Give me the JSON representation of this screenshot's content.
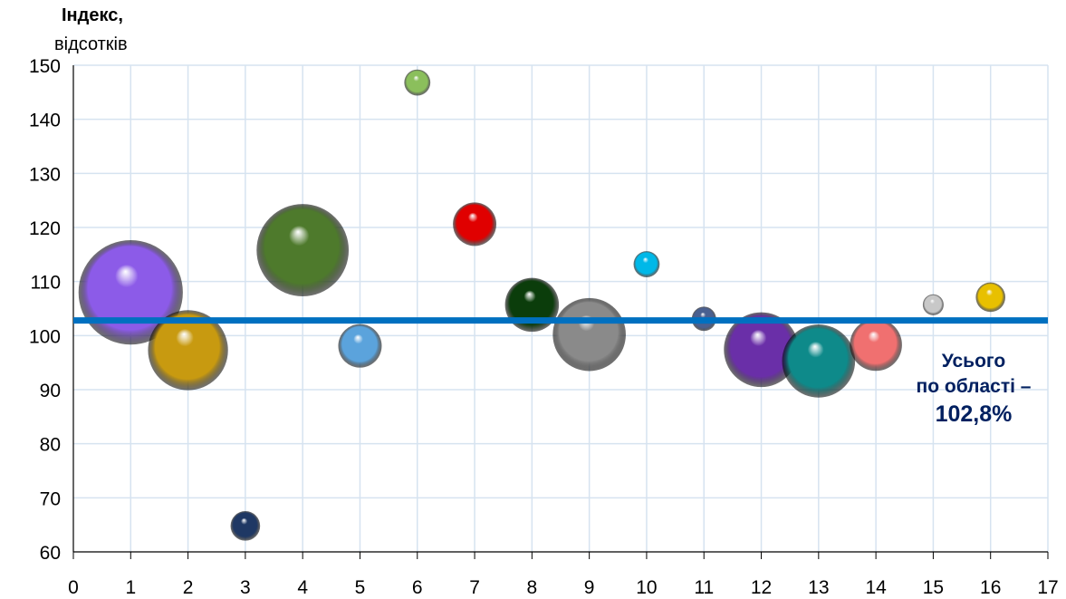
{
  "chart_data": {
    "type": "bubble",
    "ylabel_line1": "Індекс,",
    "ylabel_line2": "відсотків",
    "xlim": [
      0,
      17
    ],
    "ylim": [
      60,
      150
    ],
    "x_ticks": [
      0,
      1,
      2,
      3,
      4,
      5,
      6,
      7,
      8,
      9,
      10,
      11,
      12,
      13,
      14,
      15,
      16,
      17
    ],
    "y_ticks": [
      60,
      70,
      80,
      90,
      100,
      110,
      120,
      130,
      140,
      150
    ],
    "grid": true,
    "reference_line": {
      "y": 102.8,
      "color": "#0070c0"
    },
    "annotation": {
      "line1": "Усього",
      "line2": "по області –",
      "line3": "102,8%"
    },
    "points": [
      {
        "x": 1,
        "y": 108,
        "size": 6.0,
        "color": "#8c5be8"
      },
      {
        "x": 2,
        "y": 97.3,
        "size": 4.6,
        "color": "#c89a10"
      },
      {
        "x": 3,
        "y": 64.8,
        "size": 1.7,
        "color": "#1f3864"
      },
      {
        "x": 4,
        "y": 115.8,
        "size": 5.3,
        "color": "#4e7a2c"
      },
      {
        "x": 5,
        "y": 98.1,
        "size": 2.5,
        "color": "#5ba3dc"
      },
      {
        "x": 6,
        "y": 146.8,
        "size": 1.5,
        "color": "#8bbf5c"
      },
      {
        "x": 7,
        "y": 120.6,
        "size": 2.5,
        "color": "#e00000"
      },
      {
        "x": 8,
        "y": 105.7,
        "size": 3.1,
        "color": "#0b3d0b"
      },
      {
        "x": 9,
        "y": 100.2,
        "size": 4.2,
        "color": "#8a8a8a"
      },
      {
        "x": 10,
        "y": 113.2,
        "size": 1.5,
        "color": "#00b8e8"
      },
      {
        "x": 11,
        "y": 103.1,
        "size": 1.4,
        "color": "#4a6090"
      },
      {
        "x": 12,
        "y": 97.4,
        "size": 4.3,
        "color": "#6a2fa8"
      },
      {
        "x": 13,
        "y": 95.3,
        "size": 4.2,
        "color": "#0e8a8a"
      },
      {
        "x": 14,
        "y": 98.3,
        "size": 3.0,
        "color": "#f07070"
      },
      {
        "x": 15,
        "y": 105.7,
        "size": 1.2,
        "color": "#c8c8c8"
      },
      {
        "x": 16,
        "y": 107.1,
        "size": 1.7,
        "color": "#e8c000"
      }
    ]
  }
}
